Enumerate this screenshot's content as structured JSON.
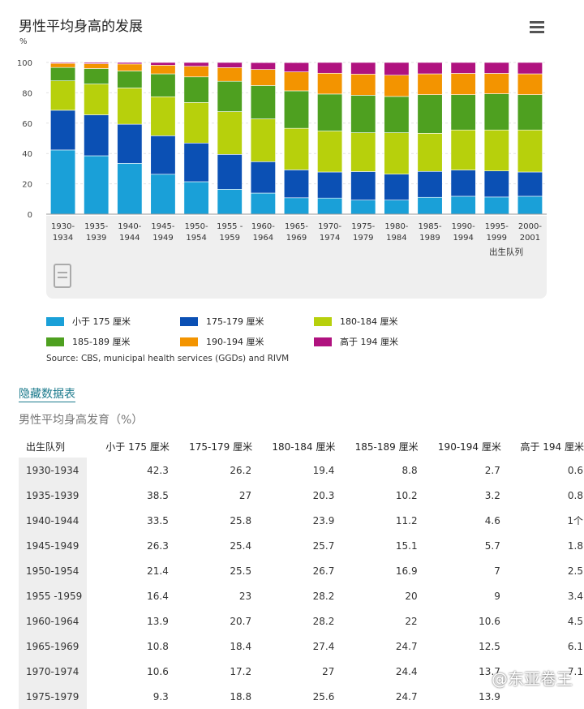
{
  "title": "男性平均身高的发展",
  "menu_icon": "hamburger-menu-icon",
  "chart_data": {
    "type": "bar",
    "stacked": true,
    "title": "男性平均身高的发展",
    "ylabel": "%",
    "xlabel": "出生队列",
    "ylim": [
      0,
      100
    ],
    "yticks": [
      0,
      20,
      40,
      60,
      80,
      100
    ],
    "grid": true,
    "legend_placement": "bottom",
    "categories": [
      "1930-1934",
      "1935-1939",
      "1940-1944",
      "1945-1949",
      "1950-1954",
      "1955-1959",
      "1960-1964",
      "1965-1969",
      "1970-1974",
      "1975-1979",
      "1980-1984",
      "1985-1989",
      "1990-1994",
      "1995-1999",
      "2000-2001"
    ],
    "category_lines": [
      [
        "1930-",
        "1934"
      ],
      [
        "1935-",
        "1939"
      ],
      [
        "1940-",
        "1944"
      ],
      [
        "1945-",
        "1949"
      ],
      [
        "1950-",
        "1954"
      ],
      [
        "1955 -",
        "1959"
      ],
      [
        "1960-",
        "1964"
      ],
      [
        "1965-",
        "1969"
      ],
      [
        "1970-",
        "1974"
      ],
      [
        "1975-",
        "1979"
      ],
      [
        "1980-",
        "1984"
      ],
      [
        "1985-",
        "1989"
      ],
      [
        "1990-",
        "1994"
      ],
      [
        "1995-",
        "1999"
      ],
      [
        "2000-",
        "2001"
      ]
    ],
    "series": [
      {
        "name": "小于 175 厘米",
        "color": "#1aa0d8",
        "values": [
          42.3,
          38.5,
          33.5,
          26.3,
          21.4,
          16.4,
          13.9,
          10.8,
          10.6,
          9.3,
          9.3,
          11.1,
          11.8,
          11.3,
          11.8
        ]
      },
      {
        "name": "175-179 厘米",
        "color": "#0b50b4",
        "values": [
          26.2,
          27,
          25.8,
          25.4,
          25.5,
          23,
          20.7,
          18.4,
          17.2,
          18.8,
          17.1,
          17.1,
          17.3,
          17.2,
          16.0
        ]
      },
      {
        "name": "180-184 厘米",
        "color": "#b7d00c",
        "values": [
          19.4,
          20.3,
          23.9,
          25.7,
          26.7,
          28.2,
          28.2,
          27.4,
          27,
          25.6,
          27.3,
          25.1,
          26.4,
          27.0,
          27.7
        ]
      },
      {
        "name": "185-189 厘米",
        "color": "#4ea020",
        "values": [
          8.8,
          10.2,
          11.2,
          15.1,
          16.9,
          20,
          22,
          24.7,
          24.4,
          24.7,
          23.9,
          25.5,
          23.3,
          23.9,
          23.3
        ]
      },
      {
        "name": "190-194 厘米",
        "color": "#f39400",
        "values": [
          2.7,
          3.2,
          4.6,
          5.7,
          7,
          9,
          10.6,
          12.5,
          13.7,
          13.9,
          14.0,
          13.7,
          14.0,
          13.4,
          13.7
        ]
      },
      {
        "name": "高于 194 厘米",
        "color": "#b0127f",
        "values": [
          0.6,
          0.8,
          1,
          1.8,
          2.5,
          3.4,
          4.5,
          6.1,
          7.1,
          7.7,
          8.4,
          7.5,
          7.2,
          7.2,
          7.5
        ]
      }
    ]
  },
  "source": "Source: CBS, municipal health services (GGDs) and RIVM",
  "hide_table_link": "隐藏数据表",
  "table": {
    "caption": "男性平均身高发育（%）",
    "headers": [
      "出生队列",
      "小于 175 厘米",
      "175-179 厘米",
      "180-184 厘米",
      "185-189 厘米",
      "190-194 厘米",
      "高于 194 厘米"
    ],
    "rows": [
      [
        "1930-1934",
        "42.3",
        "26.2",
        "19.4",
        "8.8",
        "2.7",
        "0.6"
      ],
      [
        "1935-1939",
        "38.5",
        "27",
        "20.3",
        "10.2",
        "3.2",
        "0.8"
      ],
      [
        "1940-1944",
        "33.5",
        "25.8",
        "23.9",
        "11.2",
        "4.6",
        "1个"
      ],
      [
        "1945-1949",
        "26.3",
        "25.4",
        "25.7",
        "15.1",
        "5.7",
        "1.8"
      ],
      [
        "1950-1954",
        "21.4",
        "25.5",
        "26.7",
        "16.9",
        "7",
        "2.5"
      ],
      [
        "1955 -1959",
        "16.4",
        "23",
        "28.2",
        "20",
        "9",
        "3.4"
      ],
      [
        "1960-1964",
        "13.9",
        "20.7",
        "28.2",
        "22",
        "10.6",
        "4.5"
      ],
      [
        "1965-1969",
        "10.8",
        "18.4",
        "27.4",
        "24.7",
        "12.5",
        "6.1"
      ],
      [
        "1970-1974",
        "10.6",
        "17.2",
        "27",
        "24.4",
        "13.7",
        "7.1"
      ],
      [
        "1975-1979",
        "9.3",
        "18.8",
        "25.6",
        "24.7",
        "13.9",
        ""
      ]
    ]
  },
  "watermark": "@东亚卷王"
}
